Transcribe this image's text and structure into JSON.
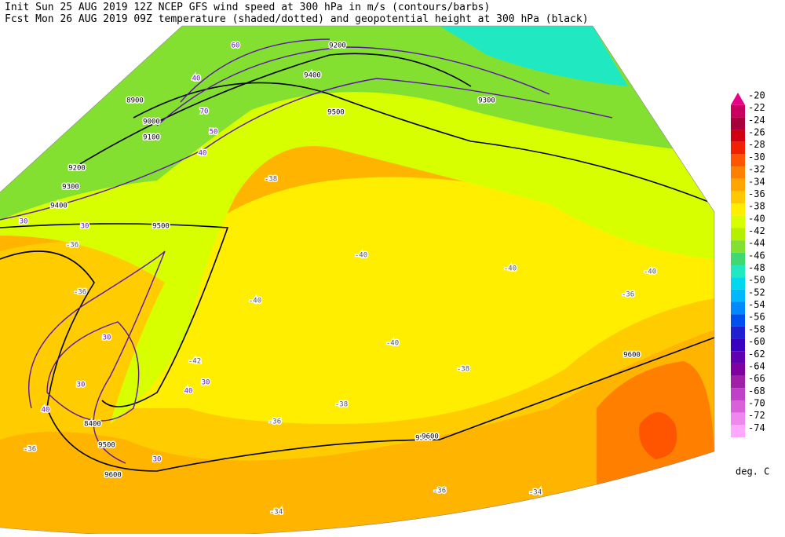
{
  "header": {
    "line1": "Init  Sun 25 AUG 2019 12Z  NCEP GFS wind speed at 300 hPa in m/s (contours/barbs)",
    "line2": "Fcst Mon 26 AUG 2019 09Z  temperature (shaded/dotted) and geopotential height at 300 hPa (black)"
  },
  "colorbar": {
    "levels": [
      -20,
      -22,
      -24,
      -26,
      -28,
      -30,
      -32,
      -34,
      -36,
      -38,
      -40,
      -42,
      -44,
      -46,
      -48,
      -50,
      -52,
      -54,
      -56,
      -58,
      -60,
      -62,
      -64,
      -66,
      -68,
      -70,
      -72,
      -74
    ],
    "colors": [
      "#e8008a",
      "#c80060",
      "#a8003a",
      "#d00010",
      "#f02000",
      "#ff5500",
      "#ff7f00",
      "#ffa500",
      "#ffc800",
      "#ffee00",
      "#d8ff00",
      "#b4f000",
      "#84e030",
      "#40d870",
      "#20e8c0",
      "#00d8f0",
      "#00b8ff",
      "#0088ff",
      "#0050f0",
      "#2020d0",
      "#3a00c0",
      "#6000b0",
      "#8000a0",
      "#a020a8",
      "#c040c8",
      "#d860d8",
      "#ee88ee",
      "#ffa8ff"
    ],
    "unit": "deg. C"
  },
  "map": {
    "height_labels": [
      "8900",
      "9000",
      "9100",
      "9200",
      "9300",
      "9400",
      "9500",
      "9500",
      "9500",
      "9600",
      "9600",
      "9600",
      "8400",
      "9500",
      "9200",
      "9300",
      "9400"
    ],
    "wind_labels": [
      "30",
      "40",
      "50",
      "60",
      "70",
      "30",
      "40",
      "30",
      "30",
      "30",
      "40",
      "30",
      "40"
    ],
    "temp_labels": [
      "-36",
      "-36",
      "-38",
      "-40",
      "-40",
      "-40",
      "-40",
      "-42",
      "-36",
      "-36",
      "-38",
      "-34",
      "-34",
      "-36",
      "-38",
      "-36",
      "-40"
    ]
  }
}
